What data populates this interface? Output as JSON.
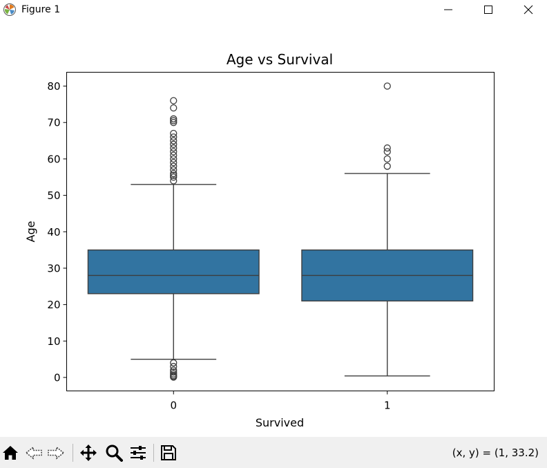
{
  "window": {
    "title": "Figure 1"
  },
  "toolbar": {
    "items": [
      {
        "name": "home-icon"
      },
      {
        "name": "back-arrow-icon"
      },
      {
        "name": "forward-arrow-icon"
      },
      {
        "name": "pan-icon"
      },
      {
        "name": "zoom-icon"
      },
      {
        "name": "configure-subplots-icon"
      },
      {
        "name": "save-icon"
      }
    ],
    "coords": "(x, y) = (1, 33.2)"
  },
  "chart_data": {
    "type": "box",
    "title": "Age vs Survival",
    "xlabel": "Survived",
    "ylabel": "Age",
    "categories": [
      "0",
      "1"
    ],
    "ylim": [
      -3.7,
      83.8
    ],
    "yticks": [
      0,
      10,
      20,
      30,
      40,
      50,
      60,
      70,
      80
    ],
    "grid": false,
    "box_color": "#3274a1",
    "boxes": [
      {
        "category": "0",
        "whisker_low": 5,
        "q1": 23,
        "median": 28,
        "q3": 35,
        "whisker_high": 53,
        "outliers": [
          0.1,
          0.3,
          0.6,
          1,
          1.5,
          2,
          3,
          4,
          54,
          55,
          55.5,
          56,
          57,
          58,
          59,
          60,
          61,
          62,
          63,
          64,
          65,
          66,
          67,
          70,
          70.5,
          71,
          74,
          76
        ]
      },
      {
        "category": "1",
        "whisker_low": 0.42,
        "q1": 21,
        "median": 28,
        "q3": 35,
        "whisker_high": 56,
        "outliers": [
          58,
          60,
          62,
          63,
          80
        ]
      }
    ]
  }
}
